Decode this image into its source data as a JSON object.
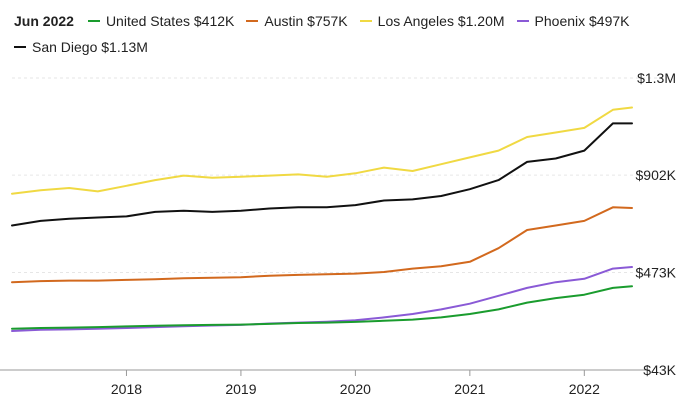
{
  "legend": {
    "date": "Jun 2022",
    "items": [
      {
        "label": "United States $412K",
        "color": "#1a9c2e"
      },
      {
        "label": "Austin $757K",
        "color": "#d2691e"
      },
      {
        "label": "Los Angeles $1.20M",
        "color": "#f0d943"
      },
      {
        "label": "Phoenix $497K",
        "color": "#8a5ad6"
      },
      {
        "label": "San Diego $1.13M",
        "color": "#111111"
      }
    ]
  },
  "chart_data": {
    "type": "line",
    "title": "",
    "xlabel": "",
    "ylabel": "",
    "x_tick_labels": [
      "2018",
      "2019",
      "2020",
      "2021",
      "2022"
    ],
    "y_tick_labels": [
      "$1.3M",
      "$902K",
      "$473K",
      "$43K"
    ],
    "y_ticks": [
      1330000,
      902000,
      473000,
      43000
    ],
    "ylim": [
      43000,
      1330000
    ],
    "xlim": [
      "2017-01",
      "2022-06"
    ],
    "grid": "horizontal",
    "legend_position": "top-left",
    "series": [
      {
        "name": "Los Angeles",
        "color": "#f0d943",
        "x": [
          "2017-01",
          "2017-04",
          "2017-07",
          "2017-10",
          "2018-01",
          "2018-04",
          "2018-07",
          "2018-10",
          "2019-01",
          "2019-04",
          "2019-07",
          "2019-10",
          "2020-01",
          "2020-04",
          "2020-07",
          "2020-10",
          "2021-01",
          "2021-04",
          "2021-07",
          "2021-10",
          "2022-01",
          "2022-04",
          "2022-06"
        ],
        "y": [
          820000,
          835000,
          845000,
          830000,
          855000,
          880000,
          900000,
          890000,
          895000,
          900000,
          905000,
          895000,
          910000,
          935000,
          920000,
          950000,
          980000,
          1010000,
          1070000,
          1090000,
          1110000,
          1190000,
          1200000
        ]
      },
      {
        "name": "San Diego",
        "color": "#111111",
        "x": [
          "2017-01",
          "2017-04",
          "2017-07",
          "2017-10",
          "2018-01",
          "2018-04",
          "2018-07",
          "2018-10",
          "2019-01",
          "2019-04",
          "2019-07",
          "2019-10",
          "2020-01",
          "2020-04",
          "2020-07",
          "2020-10",
          "2021-01",
          "2021-04",
          "2021-07",
          "2021-10",
          "2022-01",
          "2022-04",
          "2022-06"
        ],
        "y": [
          680000,
          700000,
          710000,
          715000,
          720000,
          740000,
          745000,
          740000,
          745000,
          755000,
          760000,
          760000,
          770000,
          790000,
          795000,
          810000,
          840000,
          880000,
          960000,
          975000,
          1010000,
          1130000,
          1130000
        ]
      },
      {
        "name": "Austin",
        "color": "#d2691e",
        "x": [
          "2017-01",
          "2017-04",
          "2017-07",
          "2017-10",
          "2018-01",
          "2018-04",
          "2018-07",
          "2018-10",
          "2019-01",
          "2019-04",
          "2019-07",
          "2019-10",
          "2020-01",
          "2020-04",
          "2020-07",
          "2020-10",
          "2021-01",
          "2021-04",
          "2021-07",
          "2021-10",
          "2022-01",
          "2022-04",
          "2022-06"
        ],
        "y": [
          430000,
          435000,
          437000,
          437000,
          440000,
          443000,
          447000,
          450000,
          452000,
          458000,
          462000,
          465000,
          468000,
          475000,
          490000,
          500000,
          520000,
          580000,
          660000,
          680000,
          700000,
          760000,
          757000
        ]
      },
      {
        "name": "Phoenix",
        "color": "#8a5ad6",
        "x": [
          "2017-01",
          "2017-04",
          "2017-07",
          "2017-10",
          "2018-01",
          "2018-04",
          "2018-07",
          "2018-10",
          "2019-01",
          "2019-04",
          "2019-07",
          "2019-10",
          "2020-01",
          "2020-04",
          "2020-07",
          "2020-10",
          "2021-01",
          "2021-04",
          "2021-07",
          "2021-10",
          "2022-01",
          "2022-04",
          "2022-06"
        ],
        "y": [
          215000,
          220000,
          222000,
          225000,
          228000,
          232000,
          236000,
          239000,
          242000,
          248000,
          252000,
          256000,
          262000,
          275000,
          290000,
          310000,
          335000,
          370000,
          405000,
          430000,
          445000,
          490000,
          497000
        ]
      },
      {
        "name": "United States",
        "color": "#1a9c2e",
        "x": [
          "2017-01",
          "2017-04",
          "2017-07",
          "2017-10",
          "2018-01",
          "2018-04",
          "2018-07",
          "2018-10",
          "2019-01",
          "2019-04",
          "2019-07",
          "2019-10",
          "2020-01",
          "2020-04",
          "2020-07",
          "2020-10",
          "2021-01",
          "2021-04",
          "2021-07",
          "2021-10",
          "2022-01",
          "2022-04",
          "2022-06"
        ],
        "y": [
          225000,
          228000,
          230000,
          232000,
          235000,
          238000,
          240000,
          242000,
          243000,
          246000,
          250000,
          252000,
          255000,
          260000,
          265000,
          275000,
          290000,
          310000,
          340000,
          360000,
          375000,
          405000,
          412000
        ]
      }
    ]
  }
}
